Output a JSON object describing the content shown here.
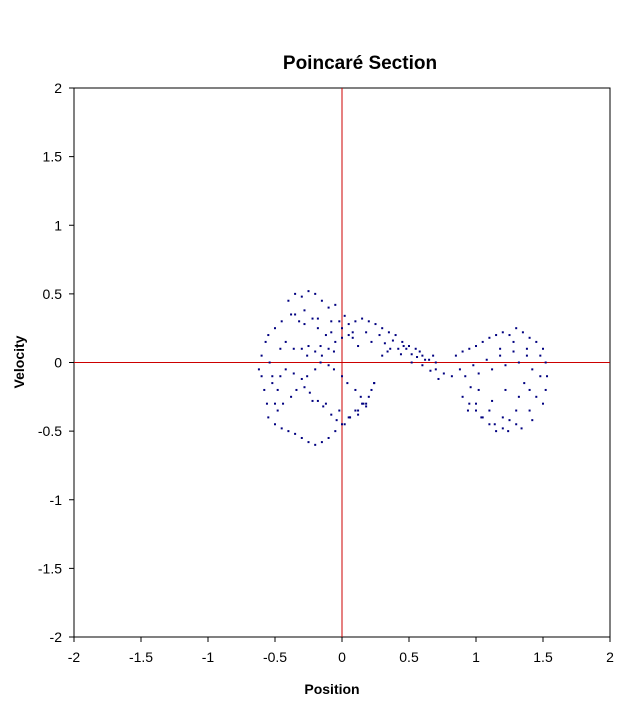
{
  "chart_data": {
    "type": "scatter",
    "title": "Poincaré Section",
    "xlabel": "Position",
    "ylabel": "Velocity",
    "xlim": [
      -2,
      2
    ],
    "ylim": [
      -2,
      2
    ],
    "xticks": [
      "-2",
      "-1.5",
      "-1",
      "-0.5",
      "0",
      "0.5",
      "1",
      "1.5",
      "2"
    ],
    "yticks": [
      "2",
      "1.5",
      "1",
      "0.5",
      "0",
      "-0.5",
      "-1",
      "-1.5",
      "-2"
    ],
    "grid": false,
    "legend": "none",
    "point_color": "#000080",
    "axis_line_color": "#cc0000",
    "series": [
      {
        "marker": "dot",
        "x": [
          -0.55,
          -0.5,
          -0.45,
          -0.52,
          -0.48,
          -0.5,
          -0.46,
          -0.54,
          -0.4,
          -0.35,
          -0.3,
          -0.25,
          -0.2,
          -0.15,
          -0.1,
          -0.05,
          -0.38,
          -0.32,
          -0.28,
          -0.22,
          -0.18,
          -0.12,
          -0.08,
          -0.02,
          -0.42,
          -0.36,
          -0.26,
          -0.16,
          -0.06,
          0.0,
          0.05,
          0.1,
          0.15,
          0.2,
          0.25,
          0.3,
          0.35,
          0.4,
          0.45,
          0.5,
          0.55,
          0.6,
          0.65,
          0.7,
          0.08,
          0.18,
          0.28,
          0.38,
          0.48,
          0.58,
          0.68,
          0.12,
          0.22,
          0.32,
          0.42,
          0.52,
          0.62,
          0.85,
          0.9,
          0.95,
          1.0,
          1.05,
          1.1,
          1.15,
          1.2,
          1.25,
          1.3,
          1.35,
          1.4,
          1.45,
          1.5,
          0.88,
          0.98,
          1.08,
          1.18,
          1.28,
          1.38,
          1.48,
          0.92,
          1.02,
          1.12,
          1.22,
          1.32,
          1.42,
          1.52,
          1.36,
          1.4,
          1.45,
          1.5,
          1.52,
          1.53,
          1.3,
          1.25,
          1.2,
          1.15,
          1.1,
          1.05,
          1.0,
          0.95,
          0.9,
          -0.6,
          -0.58,
          -0.56,
          -0.62,
          -0.6,
          -0.57,
          -0.55,
          -0.5,
          -0.45,
          -0.4,
          -0.35,
          -0.3,
          -0.25,
          -0.2,
          -0.15,
          -0.1,
          -0.05,
          0.0,
          0.05,
          0.1,
          0.15,
          0.2,
          0.22,
          0.24,
          -0.48,
          -0.44,
          -0.38,
          -0.34,
          -0.28,
          -0.24,
          -0.18,
          -0.14,
          -0.08,
          -0.04,
          0.02,
          0.06,
          0.12,
          0.16,
          -0.52,
          -0.46,
          -0.42,
          -0.36,
          -0.3,
          -0.26,
          -0.2,
          -0.16,
          -0.1,
          -0.06,
          0.0,
          0.04,
          0.1,
          0.14,
          0.18,
          -0.3,
          -0.25,
          -0.2,
          -0.15,
          -0.1,
          -0.05,
          0.0,
          0.05,
          0.08,
          -0.35,
          -0.28,
          -0.18,
          -0.08,
          0.02,
          -0.22,
          -0.12,
          -0.02,
          0.06,
          0.12,
          0.18,
          0.24,
          0.3,
          0.36,
          0.44,
          0.52,
          0.6,
          0.7,
          0.76,
          0.82,
          0.72,
          0.66,
          0.56,
          0.46,
          0.34,
          1.0,
          1.1,
          1.2,
          1.3,
          1.4,
          1.48,
          1.42,
          1.34,
          1.24,
          1.14,
          1.04,
          0.94,
          1.18,
          1.28,
          1.38,
          1.22,
          1.32,
          1.12,
          1.02,
          0.96
        ],
        "y": [
          0.2,
          0.25,
          0.3,
          -0.1,
          -0.2,
          -0.3,
          0.1,
          0.0,
          0.45,
          0.5,
          0.48,
          0.52,
          0.5,
          0.45,
          0.4,
          0.42,
          0.35,
          0.3,
          0.28,
          0.32,
          0.25,
          0.2,
          0.22,
          0.3,
          0.15,
          0.1,
          0.05,
          0.12,
          0.08,
          0.25,
          0.28,
          0.3,
          0.32,
          0.3,
          0.28,
          0.25,
          0.22,
          0.2,
          0.15,
          0.12,
          0.1,
          0.05,
          0.02,
          0.0,
          0.18,
          0.22,
          0.2,
          0.16,
          0.1,
          0.08,
          0.05,
          0.12,
          0.15,
          0.14,
          0.1,
          0.06,
          0.02,
          0.05,
          0.08,
          0.1,
          0.12,
          0.15,
          0.18,
          0.2,
          0.22,
          0.2,
          0.25,
          0.22,
          0.18,
          0.15,
          0.1,
          -0.05,
          -0.02,
          0.02,
          0.05,
          0.08,
          0.1,
          0.05,
          -0.1,
          -0.08,
          -0.05,
          -0.02,
          0.0,
          -0.05,
          0.0,
          -0.15,
          -0.2,
          -0.25,
          -0.3,
          -0.2,
          -0.1,
          -0.35,
          -0.42,
          -0.48,
          -0.5,
          -0.45,
          -0.4,
          -0.35,
          -0.3,
          -0.25,
          -0.1,
          -0.2,
          -0.3,
          -0.05,
          0.05,
          0.15,
          -0.4,
          -0.45,
          -0.48,
          -0.5,
          -0.52,
          -0.55,
          -0.58,
          -0.6,
          -0.58,
          -0.55,
          -0.5,
          -0.45,
          -0.4,
          -0.35,
          -0.3,
          -0.25,
          -0.2,
          -0.15,
          -0.35,
          -0.3,
          -0.25,
          -0.2,
          -0.18,
          -0.22,
          -0.28,
          -0.32,
          -0.38,
          -0.42,
          -0.45,
          -0.4,
          -0.35,
          -0.3,
          -0.15,
          -0.1,
          -0.05,
          -0.08,
          -0.12,
          -0.1,
          -0.05,
          0.0,
          -0.02,
          -0.05,
          -0.1,
          -0.15,
          -0.2,
          -0.25,
          -0.3,
          0.1,
          0.12,
          0.08,
          0.05,
          0.1,
          0.15,
          0.18,
          0.2,
          0.22,
          0.35,
          0.38,
          0.32,
          0.3,
          0.34,
          -0.28,
          -0.3,
          -0.35,
          -0.4,
          -0.38,
          -0.32,
          -0.15,
          0.05,
          0.1,
          0.06,
          0.0,
          -0.02,
          -0.05,
          -0.08,
          -0.1,
          -0.12,
          -0.06,
          0.04,
          0.12,
          0.08,
          -0.3,
          -0.35,
          -0.4,
          -0.45,
          -0.35,
          -0.1,
          -0.42,
          -0.48,
          -0.5,
          -0.45,
          -0.4,
          -0.35,
          0.1,
          0.15,
          0.05,
          -0.2,
          -0.25,
          -0.28,
          -0.2,
          -0.18
        ]
      }
    ]
  }
}
